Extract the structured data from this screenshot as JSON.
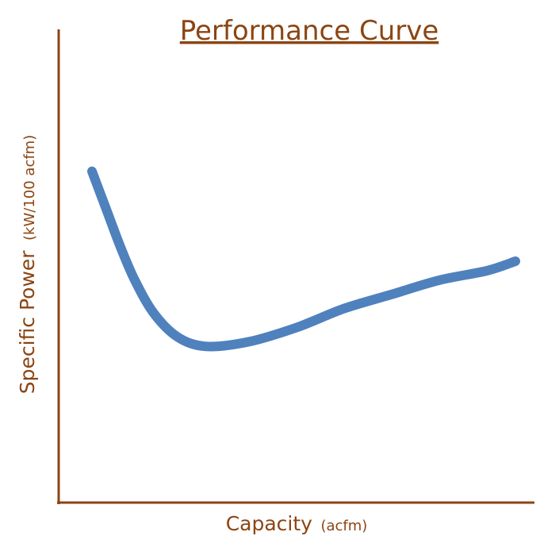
{
  "chart_data": {
    "type": "line",
    "title": "Performance Curve",
    "xlabel": "Capacity",
    "xlabel_unit": "(acfm)",
    "ylabel": "Specific Power",
    "ylabel_unit": "(kW/100 acfm)",
    "x_ticks_shown": false,
    "y_ticks_shown": false,
    "grid": false,
    "xlim": [
      0,
      100
    ],
    "ylim": [
      0,
      100
    ],
    "series": [
      {
        "color": "#4f81bd",
        "points": [
          [
            7,
            70
          ],
          [
            10,
            62
          ],
          [
            13,
            54
          ],
          [
            16,
            47
          ],
          [
            20,
            40
          ],
          [
            25,
            35
          ],
          [
            31,
            33
          ],
          [
            40,
            34
          ],
          [
            50,
            37
          ],
          [
            60,
            41
          ],
          [
            70,
            44
          ],
          [
            80,
            47
          ],
          [
            90,
            49
          ],
          [
            96,
            51
          ]
        ]
      }
    ]
  },
  "colors": {
    "text": "#8b4513",
    "axis": "#8b4513",
    "line": "#4f81bd"
  }
}
